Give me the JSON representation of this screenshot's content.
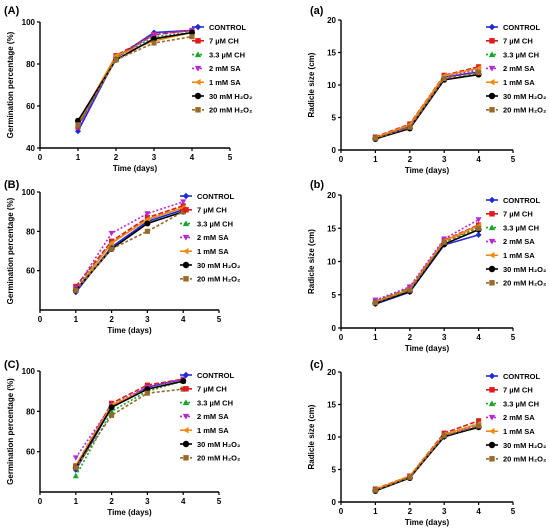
{
  "legend_labels": [
    "CONTROL",
    "7 µM CH",
    "3.3 µM CH",
    "2 mM SA",
    "1 mM SA",
    "30 mM H₂O₂",
    "20 mM H₂O₂"
  ],
  "series_styles": [
    {
      "color": "#1f2bd6",
      "marker": "diamond",
      "dash": "none"
    },
    {
      "color": "#e01b1b",
      "marker": "square",
      "dash": "5,2"
    },
    {
      "color": "#16a62a",
      "marker": "triangle",
      "dash": "2,2"
    },
    {
      "color": "#b62ad6",
      "marker": "triangle-down",
      "dash": "2,2"
    },
    {
      "color": "#f08a14",
      "marker": "triangle-left",
      "dash": "none"
    },
    {
      "color": "#000000",
      "marker": "circle",
      "dash": "none"
    },
    {
      "color": "#9a6a2a",
      "marker": "square",
      "dash": "3,2"
    }
  ],
  "chart_data": [
    {
      "panel": "(A)",
      "type": "line",
      "xlabel": "Time (days)",
      "ylabel": "Germination percentage (%)",
      "xlim": [
        0,
        5
      ],
      "ylim": [
        40,
        100
      ],
      "xticks": [
        0,
        1,
        2,
        3,
        4,
        5
      ],
      "yticks": [
        40,
        60,
        80,
        100
      ],
      "x": [
        1,
        2,
        3,
        4
      ],
      "series": [
        {
          "name": "CONTROL",
          "values": [
            48,
            83,
            95,
            96
          ]
        },
        {
          "name": "7 µM CH",
          "values": [
            50,
            84,
            94,
            96
          ]
        },
        {
          "name": "3.3 µM CH",
          "values": [
            51,
            83,
            93,
            95
          ]
        },
        {
          "name": "2 mM SA",
          "values": [
            50,
            83,
            94,
            96
          ]
        },
        {
          "name": "1 mM SA",
          "values": [
            52,
            84,
            91,
            95
          ]
        },
        {
          "name": "30 mM H₂O₂",
          "values": [
            53,
            82,
            92,
            95
          ]
        },
        {
          "name": "20 mM H₂O₂",
          "values": [
            51,
            82,
            90,
            93
          ]
        }
      ]
    },
    {
      "panel": "(a)",
      "type": "line",
      "xlabel": "Time (days)",
      "ylabel": "Radicle size (cm)",
      "xlim": [
        0,
        5
      ],
      "ylim": [
        0,
        20
      ],
      "xticks": [
        0,
        1,
        2,
        3,
        4,
        5
      ],
      "yticks": [
        0,
        5,
        10,
        15,
        20
      ],
      "x": [
        1,
        2,
        3,
        4
      ],
      "series": [
        {
          "name": "CONTROL",
          "values": [
            1.8,
            3.6,
            11.2,
            12.0
          ]
        },
        {
          "name": "7 µM CH",
          "values": [
            2.0,
            4.0,
            11.5,
            12.8
          ]
        },
        {
          "name": "3.3 µM CH",
          "values": [
            1.9,
            3.8,
            11.3,
            12.5
          ]
        },
        {
          "name": "2 mM SA",
          "values": [
            1.8,
            3.7,
            11.2,
            12.3
          ]
        },
        {
          "name": "1 mM SA",
          "values": [
            1.9,
            3.9,
            11.4,
            12.6
          ]
        },
        {
          "name": "30 mM H₂O₂",
          "values": [
            1.7,
            3.3,
            10.8,
            11.6
          ]
        },
        {
          "name": "20 mM H₂O₂",
          "values": [
            1.8,
            3.5,
            11.0,
            11.9
          ]
        }
      ]
    },
    {
      "panel": "(B)",
      "type": "line",
      "xlabel": "Time (days)",
      "ylabel": "Germination percentage (%)",
      "xlim": [
        0,
        5
      ],
      "ylim": [
        40,
        100
      ],
      "xticks": [
        0,
        1,
        2,
        3,
        4,
        5
      ],
      "yticks": [
        60,
        80,
        100
      ],
      "x": [
        1,
        2,
        3,
        4
      ],
      "series": [
        {
          "name": "CONTROL",
          "values": [
            49,
            72,
            85,
            91
          ]
        },
        {
          "name": "7 µM CH",
          "values": [
            52,
            75,
            87,
            93
          ]
        },
        {
          "name": "3.3 µM CH",
          "values": [
            51,
            74,
            86,
            92
          ]
        },
        {
          "name": "2 mM SA",
          "values": [
            51,
            79,
            89,
            95
          ]
        },
        {
          "name": "1 mM SA",
          "values": [
            50,
            74,
            86,
            92
          ]
        },
        {
          "name": "30 mM H₂O₂",
          "values": [
            50,
            71,
            84,
            90
          ]
        },
        {
          "name": "20 mM H₂O₂",
          "values": [
            50,
            71,
            80,
            90
          ]
        }
      ]
    },
    {
      "panel": "(b)",
      "type": "line",
      "xlabel": "Time (days)",
      "ylabel": "Radicle size (cm)",
      "xlim": [
        0,
        5
      ],
      "ylim": [
        0,
        20
      ],
      "xticks": [
        0,
        1,
        2,
        3,
        4,
        5
      ],
      "yticks": [
        0,
        5,
        10,
        15,
        20
      ],
      "x": [
        1,
        2,
        3,
        4
      ],
      "series": [
        {
          "name": "CONTROL",
          "values": [
            3.6,
            5.4,
            12.5,
            14.0
          ]
        },
        {
          "name": "7 µM CH",
          "values": [
            4.0,
            6.0,
            13.2,
            15.5
          ]
        },
        {
          "name": "3.3 µM CH",
          "values": [
            4.1,
            5.9,
            13.0,
            15.2
          ]
        },
        {
          "name": "2 mM SA",
          "values": [
            4.2,
            6.2,
            13.4,
            16.3
          ]
        },
        {
          "name": "1 mM SA",
          "values": [
            3.9,
            5.8,
            13.1,
            15.4
          ]
        },
        {
          "name": "30 mM H₂O₂",
          "values": [
            3.7,
            5.5,
            12.6,
            14.8
          ]
        },
        {
          "name": "20 mM H₂O₂",
          "values": [
            3.8,
            5.7,
            12.9,
            15.0
          ]
        }
      ]
    },
    {
      "panel": "(C)",
      "type": "line",
      "xlabel": "Time (days)",
      "ylabel": "Germination percentage (%)",
      "xlim": [
        0,
        5
      ],
      "ylim": [
        40,
        100
      ],
      "xticks": [
        0,
        1,
        2,
        3,
        4,
        5
      ],
      "yticks": [
        60,
        80,
        100
      ],
      "x": [
        1,
        2,
        3,
        4
      ],
      "series": [
        {
          "name": "CONTROL",
          "values": [
            51,
            82,
            92,
            96
          ]
        },
        {
          "name": "7 µM CH",
          "values": [
            53,
            84,
            93,
            96
          ]
        },
        {
          "name": "3.3 µM CH",
          "values": [
            48,
            80,
            90,
            95
          ]
        },
        {
          "name": "2 mM SA",
          "values": [
            57,
            83,
            92,
            96
          ]
        },
        {
          "name": "1 mM SA",
          "values": [
            53,
            83,
            91,
            95
          ]
        },
        {
          "name": "30 mM H₂O₂",
          "values": [
            52,
            82,
            91,
            95
          ]
        },
        {
          "name": "20 mM H₂O₂",
          "values": [
            52,
            78,
            89,
            91
          ]
        }
      ]
    },
    {
      "panel": "(c)",
      "type": "line",
      "xlabel": "Time (days)",
      "ylabel": "Radicle size (cm)",
      "xlim": [
        0,
        5
      ],
      "ylim": [
        0,
        20
      ],
      "xticks": [
        0,
        1,
        2,
        3,
        4,
        5
      ],
      "yticks": [
        0,
        5,
        10,
        15,
        20
      ],
      "x": [
        1,
        2,
        3,
        4
      ],
      "series": [
        {
          "name": "CONTROL",
          "values": [
            1.8,
            3.8,
            10.0,
            11.6
          ]
        },
        {
          "name": "7 µM CH",
          "values": [
            2.0,
            4.0,
            10.6,
            12.5
          ]
        },
        {
          "name": "3.3 µM CH",
          "values": [
            1.9,
            3.9,
            10.3,
            12.1
          ]
        },
        {
          "name": "2 mM SA",
          "values": [
            1.8,
            3.9,
            10.2,
            11.8
          ]
        },
        {
          "name": "1 mM SA",
          "values": [
            1.9,
            4.0,
            10.4,
            12.0
          ]
        },
        {
          "name": "30 mM H₂O₂",
          "values": [
            1.7,
            3.7,
            10.1,
            11.5
          ]
        },
        {
          "name": "20 mM H₂O₂",
          "values": [
            1.8,
            3.8,
            10.2,
            11.7
          ]
        }
      ]
    }
  ]
}
